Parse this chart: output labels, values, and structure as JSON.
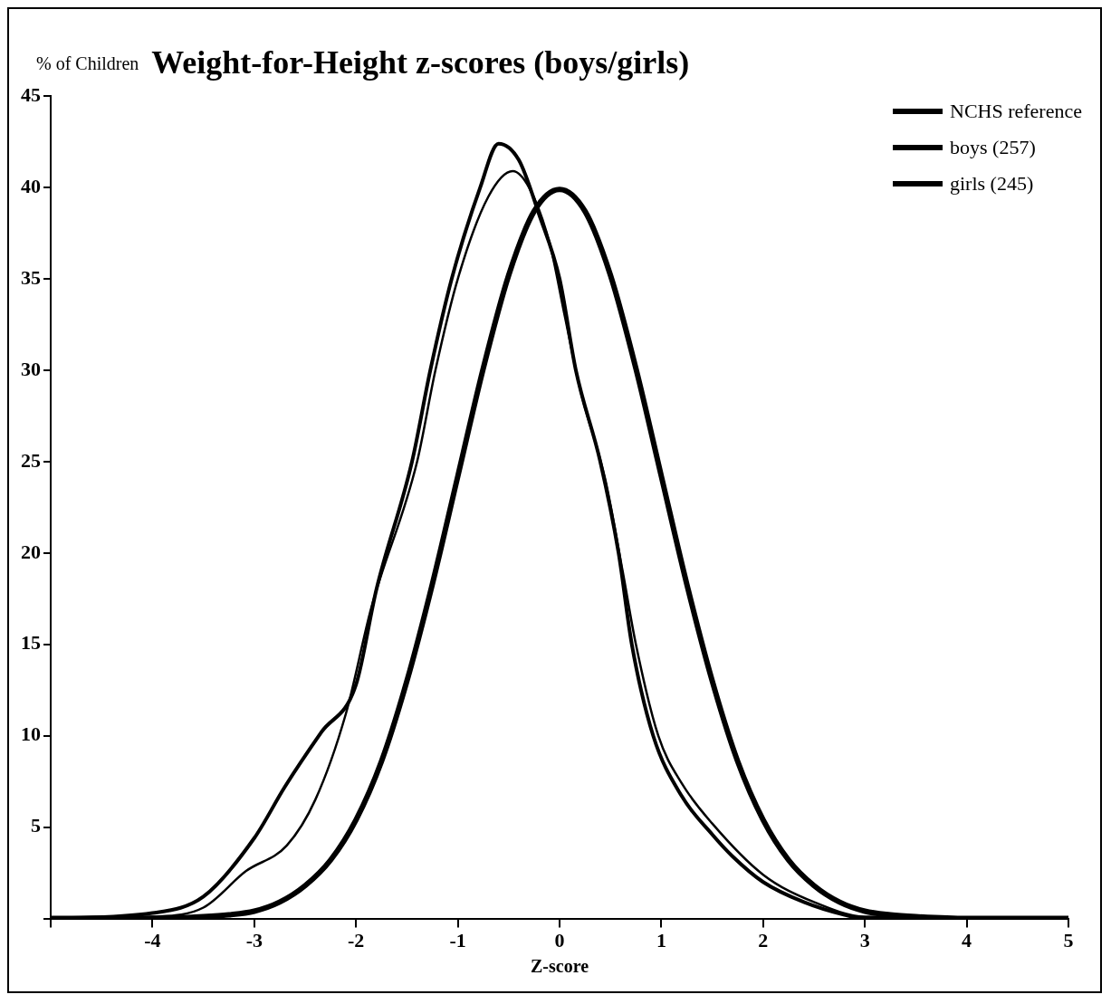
{
  "chart_data": {
    "type": "line",
    "title": "Weight-for-Height z-scores (boys/girls)",
    "ylabel": "% of Children",
    "xlabel": "Z-score",
    "xlim": [
      -5,
      5
    ],
    "xticks": [
      {
        "value": -5,
        "label": null
      },
      -4,
      -3,
      -2,
      -1,
      0,
      1,
      2,
      3,
      4,
      5
    ],
    "ylim": [
      0,
      45
    ],
    "yticks": [
      {
        "value": 0,
        "label": null
      },
      5,
      10,
      15,
      20,
      25,
      30,
      35,
      40,
      45
    ],
    "grid": false,
    "legend": "top right",
    "marker": "none",
    "line_style": "solid",
    "series": [
      {
        "name": "NCHS reference",
        "color": "#000000",
        "x": [
          -5,
          -4,
          -3.5,
          -3.25,
          -3,
          -2.75,
          -2.5,
          -2.25,
          -2,
          -1.75,
          -1.5,
          -1.25,
          -1,
          -0.75,
          -0.5,
          -0.25,
          0,
          0.25,
          0.5,
          0.75,
          1,
          1.25,
          1.5,
          1.75,
          2,
          2.25,
          2.5,
          2.75,
          3,
          3.25,
          3.5,
          4,
          5
        ],
        "values": [
          0,
          0,
          0.1,
          0.2,
          0.4,
          0.9,
          1.8,
          3.2,
          5.4,
          8.6,
          13,
          18.3,
          24.2,
          30.1,
          35.2,
          38.7,
          39.9,
          38.7,
          35.2,
          30.1,
          24.2,
          18.3,
          13,
          8.6,
          5.4,
          3.2,
          1.8,
          0.9,
          0.4,
          0.2,
          0.1,
          0,
          0
        ]
      },
      {
        "name": "boys (257)",
        "color": "#000000",
        "x": [
          -5,
          -4,
          -3.5,
          -3,
          -2.7,
          -2.34,
          -2,
          -1.8,
          -1.45,
          -1.27,
          -1.06,
          -0.78,
          -0.6,
          -0.4,
          -0.2,
          0,
          0.16,
          0.4,
          0.58,
          0.71,
          0.92,
          1.2,
          1.5,
          1.7,
          2,
          2.4,
          2.8,
          3,
          5
        ],
        "values": [
          0,
          0.3,
          1.2,
          4.4,
          7.2,
          10.2,
          12.8,
          18,
          25,
          30,
          35,
          40,
          42.4,
          41.5,
          38.5,
          35,
          30,
          25,
          20,
          15,
          10,
          6.7,
          4.6,
          3.4,
          2,
          0.9,
          0.2,
          0,
          0
        ]
      },
      {
        "name": "girls (245)",
        "color": "#000000",
        "x": [
          -5,
          -4,
          -3.5,
          -3.08,
          -2.68,
          -2.4,
          -2.1,
          -1.85,
          -1.4,
          -1.22,
          -1,
          -0.7,
          -0.46,
          -0.3,
          -0.1,
          0.05,
          0.2,
          0.45,
          0.62,
          0.75,
          0.97,
          1.2,
          1.5,
          2,
          2.5,
          3,
          5
        ],
        "values": [
          0,
          0.1,
          0.6,
          2.6,
          4,
          6.5,
          11.2,
          17,
          25,
          30,
          35,
          39.5,
          40.9,
          40,
          37,
          33,
          29,
          24,
          19,
          15,
          10,
          7.4,
          5.2,
          2.4,
          0.9,
          0.1,
          0
        ]
      }
    ]
  }
}
